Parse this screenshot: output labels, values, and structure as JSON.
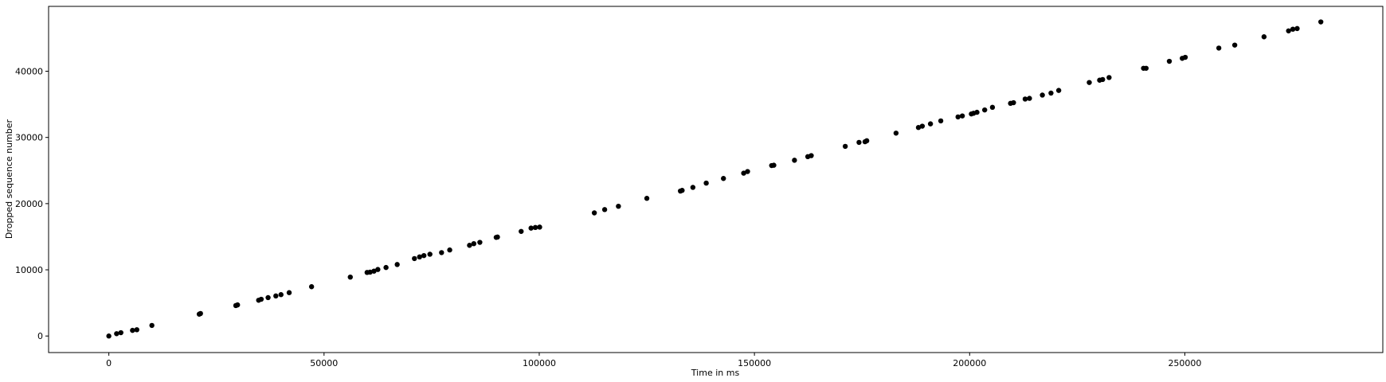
{
  "chart_data": {
    "type": "scatter",
    "title": "",
    "xlabel": "Time in ms",
    "ylabel": "Dropped sequence number",
    "xlim": [
      -14000,
      296000
    ],
    "ylim": [
      -2500,
      49800
    ],
    "x_ticks": [
      0,
      50000,
      100000,
      150000,
      200000,
      250000
    ],
    "y_ticks": [
      0,
      10000,
      20000,
      30000,
      40000
    ],
    "grid": false,
    "legend": "none",
    "marker_color": "#000000",
    "points": [
      [
        0,
        0
      ],
      [
        1800,
        350
      ],
      [
        2800,
        500
      ],
      [
        5500,
        850
      ],
      [
        6500,
        950
      ],
      [
        10000,
        1600
      ],
      [
        21000,
        3300
      ],
      [
        21300,
        3400
      ],
      [
        29500,
        4600
      ],
      [
        29900,
        4700
      ],
      [
        34800,
        5400
      ],
      [
        35400,
        5550
      ],
      [
        37000,
        5800
      ],
      [
        38800,
        6050
      ],
      [
        40000,
        6250
      ],
      [
        41900,
        6550
      ],
      [
        47100,
        7450
      ],
      [
        56100,
        8900
      ],
      [
        60000,
        9600
      ],
      [
        60700,
        9650
      ],
      [
        61600,
        9800
      ],
      [
        62500,
        10050
      ],
      [
        64400,
        10350
      ],
      [
        67000,
        10800
      ],
      [
        71000,
        11700
      ],
      [
        72200,
        11950
      ],
      [
        73200,
        12150
      ],
      [
        74600,
        12350
      ],
      [
        77300,
        12600
      ],
      [
        79200,
        13000
      ],
      [
        83800,
        13700
      ],
      [
        84800,
        13950
      ],
      [
        86200,
        14150
      ],
      [
        90000,
        14900
      ],
      [
        90300,
        14950
      ],
      [
        95800,
        15800
      ],
      [
        98100,
        16300
      ],
      [
        99100,
        16400
      ],
      [
        100100,
        16450
      ],
      [
        112800,
        18600
      ],
      [
        115200,
        19100
      ],
      [
        118400,
        19600
      ],
      [
        125000,
        20800
      ],
      [
        132800,
        21900
      ],
      [
        133200,
        22000
      ],
      [
        135700,
        22450
      ],
      [
        138800,
        23100
      ],
      [
        142800,
        23800
      ],
      [
        147500,
        24600
      ],
      [
        148400,
        24850
      ],
      [
        154000,
        25750
      ],
      [
        154500,
        25800
      ],
      [
        159300,
        26550
      ],
      [
        162400,
        27100
      ],
      [
        163200,
        27250
      ],
      [
        171100,
        28650
      ],
      [
        174300,
        29250
      ],
      [
        175700,
        29350
      ],
      [
        176100,
        29500
      ],
      [
        182900,
        30650
      ],
      [
        188100,
        31500
      ],
      [
        189000,
        31700
      ],
      [
        190900,
        32050
      ],
      [
        193300,
        32500
      ],
      [
        197300,
        33100
      ],
      [
        198300,
        33250
      ],
      [
        200400,
        33550
      ],
      [
        200900,
        33650
      ],
      [
        201700,
        33800
      ],
      [
        203500,
        34150
      ],
      [
        205300,
        34550
      ],
      [
        209500,
        35150
      ],
      [
        210200,
        35250
      ],
      [
        212900,
        35800
      ],
      [
        213900,
        35900
      ],
      [
        216900,
        36400
      ],
      [
        218900,
        36700
      ],
      [
        220700,
        37100
      ],
      [
        227800,
        38300
      ],
      [
        230200,
        38650
      ],
      [
        230900,
        38750
      ],
      [
        232400,
        39050
      ],
      [
        240400,
        40450
      ],
      [
        241000,
        40450
      ],
      [
        246400,
        41500
      ],
      [
        249400,
        41950
      ],
      [
        250100,
        42100
      ],
      [
        257900,
        43500
      ],
      [
        261600,
        43950
      ],
      [
        268400,
        45200
      ],
      [
        274100,
        46100
      ],
      [
        275100,
        46350
      ],
      [
        276100,
        46450
      ],
      [
        281600,
        47450
      ]
    ]
  }
}
